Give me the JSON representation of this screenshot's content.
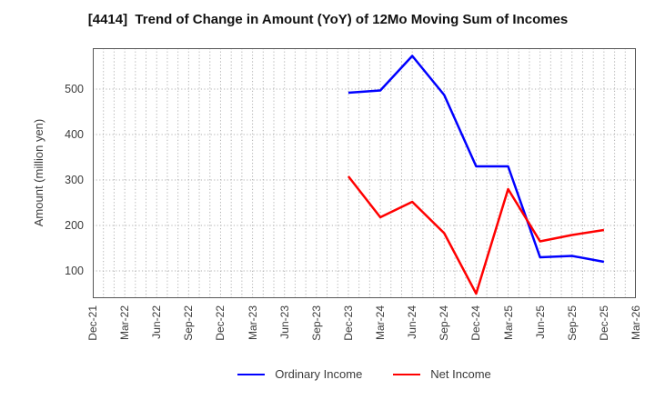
{
  "chart_data": {
    "type": "line",
    "title": "[4414]  Trend of Change in Amount (YoY) of 12Mo Moving Sum of Incomes",
    "xlabel": "",
    "ylabel": "Amount (million yen)",
    "x_tick_labels": [
      "Dec-21",
      "Mar-22",
      "Jun-22",
      "Sep-22",
      "Dec-22",
      "Mar-23",
      "Jun-23",
      "Sep-23",
      "Dec-23",
      "Mar-24",
      "Jun-24",
      "Sep-24",
      "Dec-24",
      "Mar-25",
      "Jun-25",
      "Sep-25",
      "Dec-25",
      "Mar-26"
    ],
    "x_axis_unit": "month",
    "x_total_months": 51,
    "x_months_per_tick": 3,
    "yticks": [
      100,
      200,
      300,
      400,
      500
    ],
    "ylim": [
      40,
      590
    ],
    "grid": "dotted, monthly vertical + 100-step horizontal",
    "legend_position": "bottom-center",
    "series": [
      {
        "name": "Ordinary Income",
        "color": "#0000ff",
        "x_labels": [
          "Dec-23",
          "Mar-24",
          "Jun-24",
          "Sep-24",
          "Dec-24",
          "Mar-25",
          "Jun-25",
          "Sep-25",
          "Dec-25"
        ],
        "x_months": [
          24,
          27,
          30,
          33,
          36,
          39,
          42,
          45,
          48
        ],
        "values": [
          492,
          497,
          573,
          487,
          330,
          330,
          130,
          133,
          120
        ]
      },
      {
        "name": "Net Income",
        "color": "#ff0000",
        "x_labels": [
          "Dec-23",
          "Mar-24",
          "Jun-24",
          "Sep-24",
          "Dec-24",
          "Mar-25",
          "Jun-25",
          "Sep-25",
          "Dec-25"
        ],
        "x_months": [
          24,
          27,
          30,
          33,
          36,
          39,
          42,
          45,
          48
        ],
        "values": [
          308,
          218,
          252,
          183,
          50,
          280,
          165,
          179,
          190
        ]
      }
    ],
    "style": {
      "background": "#ffffff",
      "axis_border_color": "#555555",
      "grid_color": "#b0b0b0",
      "tick_text_color": "#3a3a3a",
      "title_color": "#111111",
      "line_width": 2.5
    }
  }
}
